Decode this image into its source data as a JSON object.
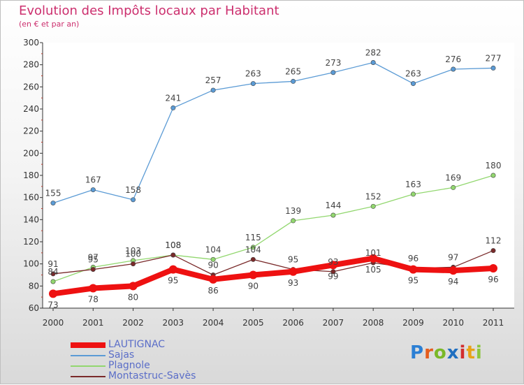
{
  "title": "Evolution des Impôts locaux par Habitant",
  "subtitle": "(en € et par an)",
  "logo": "Proxiti",
  "chart_data": {
    "type": "line",
    "title": "Evolution des Impôts locaux par Habitant",
    "subtitle": "(en € et par an)",
    "xlabel": "",
    "ylabel": "",
    "x": [
      "2000",
      "2001",
      "2002",
      "2003",
      "2004",
      "2005",
      "2006",
      "2007",
      "2008",
      "2009",
      "2010",
      "2011"
    ],
    "ylim": [
      60,
      300
    ],
    "yticks": [
      60,
      80,
      100,
      120,
      140,
      160,
      180,
      200,
      220,
      240,
      260,
      280,
      300
    ],
    "grid": false,
    "legend_position": "bottom-left",
    "series": [
      {
        "name": "LAUTIGNAC",
        "color": "#ee1111",
        "values": [
          73,
          78,
          80,
          95,
          86,
          90,
          93,
          99,
          105,
          95,
          94,
          96
        ]
      },
      {
        "name": "Sajas",
        "color": "#5b9bd5",
        "values": [
          155,
          167,
          158,
          241,
          257,
          263,
          265,
          273,
          282,
          263,
          276,
          277
        ]
      },
      {
        "name": "Plagnole",
        "color": "#92d76f",
        "values": [
          84,
          97,
          103,
          108,
          104,
          115,
          139,
          144,
          152,
          163,
          169,
          180
        ]
      },
      {
        "name": "Montastruc-Savès",
        "color": "#7a2a2a",
        "values": [
          91,
          95,
          100,
          108,
          90,
          104,
          95,
          93,
          101,
          96,
          97,
          112
        ]
      }
    ]
  }
}
